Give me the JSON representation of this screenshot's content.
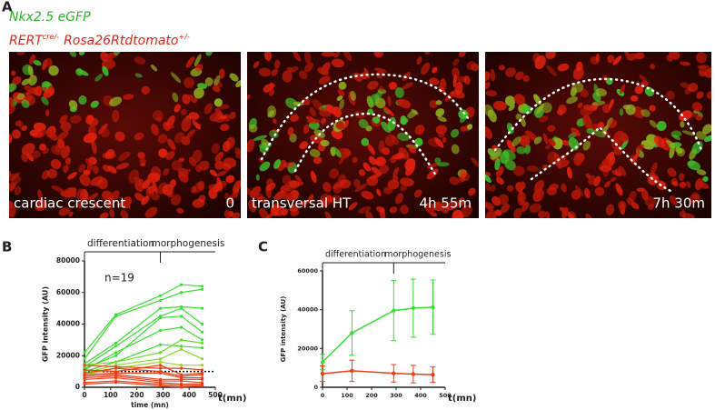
{
  "panel_labels": [
    "A",
    "B",
    "C"
  ],
  "reporter": "Nkx2.5 eGFP",
  "genotype": {
    "parts": [
      "RERT",
      "cre/-",
      "Rosa26Rtdtomato",
      "+/-"
    ]
  },
  "images": [
    {
      "caption": "cardiac crescent",
      "time": "0"
    },
    {
      "caption": "transversal HT",
      "time": "4h 55m"
    },
    {
      "caption": "7h 30m"
    }
  ],
  "chart_data": [
    {
      "type": "line",
      "ylabel": "GFP intensity (AU)",
      "xlabel": "time (mn)",
      "x_unit_label": "t(mn)",
      "annotation": "n=19",
      "phase_labels": [
        "differentiation",
        "morphogenesis"
      ],
      "x": [
        0,
        120,
        290,
        370,
        450
      ],
      "xlim": [
        0,
        500
      ],
      "xticks": [
        0,
        100,
        200,
        300,
        400,
        500
      ],
      "ylim": [
        0,
        80000
      ],
      "yticks": [
        0,
        20000,
        40000,
        60000,
        80000
      ],
      "reference_line": 10000,
      "series": [
        {
          "color": "#3ddc35",
          "values": [
            22000,
            46000,
            58000,
            65000,
            64000
          ]
        },
        {
          "color": "#3ddc35",
          "values": [
            18000,
            45000,
            55000,
            60000,
            62000
          ]
        },
        {
          "color": "#3ddc35",
          "values": [
            15000,
            28000,
            50000,
            51000,
            50000
          ]
        },
        {
          "color": "#3ddc35",
          "values": [
            13000,
            26000,
            45000,
            50000,
            40000
          ]
        },
        {
          "color": "#3ddc35",
          "values": [
            12000,
            20000,
            44000,
            45000,
            35000
          ]
        },
        {
          "color": "#3ddc35",
          "values": [
            11000,
            22000,
            36000,
            38000,
            30000
          ]
        },
        {
          "color": "#3ddc35",
          "values": [
            10000,
            16000,
            27000,
            26000,
            25000
          ]
        },
        {
          "color": "#6fd82a",
          "values": [
            14000,
            16000,
            22000,
            30000,
            28000
          ]
        },
        {
          "color": "#8bd826",
          "values": [
            9000,
            14000,
            18000,
            24000,
            18000
          ]
        },
        {
          "color": "#9ed424",
          "values": [
            8000,
            12000,
            16000,
            14000,
            14000
          ]
        },
        {
          "color": "#e8401c",
          "values": [
            14000,
            13000,
            12000,
            12000,
            11000
          ]
        },
        {
          "color": "#e8401c",
          "values": [
            11000,
            10000,
            14000,
            8000,
            9000
          ]
        },
        {
          "color": "#e8401c",
          "values": [
            9000,
            12000,
            10000,
            7000,
            8000
          ]
        },
        {
          "color": "#e8401c",
          "values": [
            8000,
            9000,
            9000,
            6000,
            6000
          ]
        },
        {
          "color": "#e8401c",
          "values": [
            7000,
            8000,
            5000,
            5000,
            5000
          ]
        },
        {
          "color": "#e8401c",
          "values": [
            6000,
            7000,
            4000,
            4000,
            3000
          ]
        },
        {
          "color": "#e8401c",
          "values": [
            5000,
            6000,
            3000,
            2000,
            2000
          ]
        },
        {
          "color": "#e8401c",
          "values": [
            3000,
            4000,
            2000,
            1000,
            1000
          ]
        },
        {
          "color": "#e8401c",
          "values": [
            2000,
            3000,
            1000,
            0,
            1000
          ]
        }
      ]
    },
    {
      "type": "errorbar",
      "ylabel": "GFP intensity (AU)",
      "x_unit_label": "t(mn)",
      "phase_labels": [
        "differentiation",
        "morphogenesis"
      ],
      "x": [
        0,
        120,
        290,
        370,
        450
      ],
      "xlim": [
        0,
        500
      ],
      "xticks": [
        0,
        100,
        200,
        300,
        400,
        500
      ],
      "ylim": [
        0,
        60000
      ],
      "yticks": [
        0,
        20000,
        40000,
        60000
      ],
      "series": [
        {
          "color": "#3ddc35",
          "values": [
            13000,
            28000,
            39500,
            40800,
            41300
          ],
          "errors": [
            4000,
            11500,
            15500,
            15000,
            14000
          ]
        },
        {
          "color": "#e8401c",
          "values": [
            7000,
            8500,
            7200,
            6800,
            6500
          ],
          "errors": [
            4000,
            5500,
            4500,
            4500,
            4000
          ]
        }
      ]
    }
  ]
}
